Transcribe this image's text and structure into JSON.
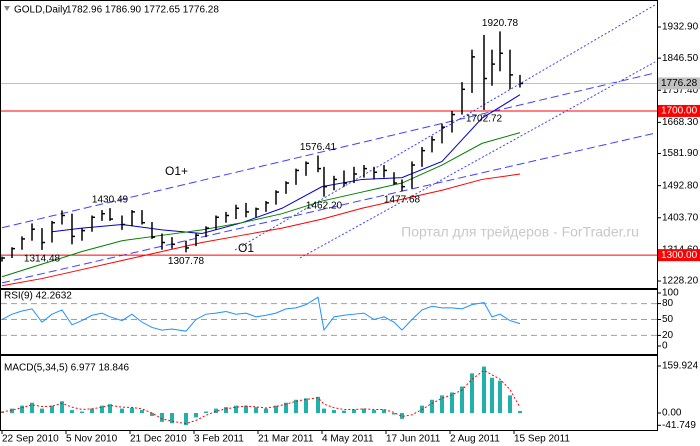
{
  "chart_data": [
    {
      "type": "ohlc",
      "title": "GOLD,Daily",
      "subtitle": "1782.96 1786.90 1772.65 1776.28",
      "x": [
        0,
        5,
        10,
        15,
        20,
        25,
        30,
        35,
        40,
        45,
        50,
        54,
        60,
        65,
        70,
        75,
        80,
        85,
        92,
        97,
        102,
        107,
        112,
        117,
        122,
        127,
        132,
        137,
        142,
        147,
        152,
        158,
        161,
        166,
        171,
        176,
        181,
        186,
        191,
        196,
        200,
        205,
        210,
        215,
        220,
        225,
        230,
        235,
        241,
        245,
        249,
        254,
        259
      ],
      "high": [
        1296,
        1322,
        1352,
        1388,
        1375,
        1395,
        1424,
        1415,
        1375,
        1410,
        1425,
        1430.49,
        1410,
        1425,
        1425,
        1392,
        1360,
        1350,
        1340,
        1360,
        1380,
        1410,
        1420,
        1440,
        1445,
        1432,
        1450,
        1480,
        1505,
        1540,
        1560,
        1576.41,
        1545,
        1520,
        1535,
        1545,
        1550,
        1545,
        1550,
        1530,
        1510,
        1560,
        1600,
        1630,
        1665,
        1700,
        1780,
        1870,
        1911,
        1870,
        1920.78,
        1870,
        1800
      ],
      "low": [
        1282,
        1292,
        1315,
        1340,
        1314.48,
        1335,
        1385,
        1330,
        1340,
        1365,
        1395,
        1395,
        1370,
        1380,
        1385,
        1345,
        1315,
        1318,
        1307.78,
        1325,
        1350,
        1370,
        1390,
        1400,
        1405,
        1405,
        1420,
        1440,
        1470,
        1495,
        1520,
        1530,
        1462.2,
        1480,
        1490,
        1500,
        1515,
        1510,
        1515,
        1495,
        1477.68,
        1485,
        1545,
        1585,
        1610,
        1640,
        1690,
        1750,
        1702.72,
        1770,
        1810,
        1760,
        1765
      ],
      "close": [
        1292,
        1318,
        1345,
        1372,
        1335,
        1390,
        1410,
        1352,
        1368,
        1405,
        1415,
        1400,
        1385,
        1420,
        1390,
        1350,
        1335,
        1330,
        1320,
        1355,
        1375,
        1405,
        1410,
        1430,
        1420,
        1428,
        1445,
        1475,
        1500,
        1535,
        1555,
        1540,
        1490,
        1510,
        1500,
        1525,
        1540,
        1530,
        1535,
        1500,
        1490,
        1550,
        1590,
        1620,
        1655,
        1690,
        1760,
        1850,
        1790,
        1830,
        1860,
        1800,
        1776.28
      ],
      "color": "#000000",
      "xlim": [
        -1,
        327.5
      ],
      "ylim": [
        1211.6,
        1999.5
      ],
      "yticks": [
        {
          "value": 1932.9,
          "label": "1932.90"
        },
        {
          "value": 1846.5,
          "label": "1846.50"
        },
        {
          "value": 1757.4,
          "label": "1757.40"
        },
        {
          "value": 1668.3,
          "label": "1668.30"
        },
        {
          "value": 1581.9,
          "label": "1581.90"
        },
        {
          "value": 1492.8,
          "label": "1492.80"
        },
        {
          "value": 1403.7,
          "label": "1403.70"
        },
        {
          "value": 1314.6,
          "label": "1314.60"
        },
        {
          "value": 1228.2,
          "label": "1228.20"
        }
      ],
      "moving_averages": [
        {
          "x": [
            25,
            40,
            60,
            80,
            100,
            120,
            140,
            160,
            180,
            200,
            220,
            240,
            259
          ],
          "values": [
            1365,
            1375,
            1385,
            1370,
            1360,
            1390,
            1430,
            1490,
            1510,
            1515,
            1560,
            1680,
            1745
          ],
          "color": "#0000cd"
        },
        {
          "x": [
            0,
            20,
            40,
            60,
            80,
            100,
            120,
            140,
            160,
            180,
            200,
            220,
            240,
            259
          ],
          "values": [
            1240,
            1275,
            1310,
            1340,
            1355,
            1370,
            1390,
            1415,
            1450,
            1475,
            1500,
            1550,
            1610,
            1640
          ],
          "color": "#008000"
        },
        {
          "x": [
            0,
            20,
            40,
            60,
            80,
            100,
            120,
            140,
            160,
            180,
            200,
            220,
            240,
            259
          ],
          "values": [
            1215,
            1235,
            1260,
            1285,
            1310,
            1335,
            1355,
            1375,
            1400,
            1430,
            1455,
            1480,
            1510,
            1525
          ],
          "color": "#ff0000"
        }
      ],
      "trendlines": [
        {
          "x": [
            0,
            327
          ],
          "values": [
            1376,
            1806
          ],
          "color": "#4040ff",
          "style": "dashed"
        },
        {
          "x": [
            0,
            327
          ],
          "values": [
            1223,
            1639
          ],
          "color": "#4040ff",
          "style": "dashed"
        },
        {
          "x": [
            116.5,
            326.5
          ],
          "values": [
            1314.3,
            1994.1
          ],
          "color": "#4040ff",
          "style": "dotted"
        },
        {
          "x": [
            149,
            326.5
          ],
          "values": [
            1292.1,
            1835.9
          ],
          "color": "#4040ff",
          "style": "dotted"
        }
      ],
      "price_levels": [
        {
          "value": 1776.28,
          "color": "#c0c0c0"
        },
        {
          "value": 1700,
          "label": "1700.00",
          "color": "#ff0000"
        },
        {
          "value": 1300,
          "label": "1300.00",
          "color": "#ff0000"
        }
      ],
      "high_labels": [
        {
          "x": 249,
          "value": 1920.78
        },
        {
          "x": 158,
          "value": 1576.41
        },
        {
          "x": 54,
          "value": 1430.49
        }
      ],
      "low_labels": [
        {
          "x": 241,
          "value": 1702.72
        },
        {
          "x": 161,
          "value": 1462.2,
          "label": "1462.20"
        },
        {
          "x": 200,
          "value": 1477.68
        },
        {
          "x": 20,
          "value": 1314.48
        },
        {
          "x": 92,
          "value": 1307.78
        }
      ],
      "channel_labels": [
        "O1+",
        "O1"
      ],
      "watermark": "Портал для трейдеров - ForTrader.ru"
    },
    {
      "type": "line",
      "title": "RSI(9) 42.2632",
      "x": [
        0,
        5,
        10,
        15,
        20,
        25,
        30,
        35,
        40,
        45,
        50,
        54,
        60,
        65,
        70,
        75,
        80,
        85,
        92,
        97,
        102,
        107,
        112,
        117,
        122,
        127,
        132,
        137,
        142,
        147,
        152,
        158,
        161,
        166,
        171,
        176,
        181,
        186,
        191,
        196,
        200,
        205,
        210,
        215,
        220,
        225,
        230,
        235,
        241,
        245,
        249,
        254,
        259
      ],
      "values": [
        50,
        60,
        66,
        70,
        45,
        60,
        68,
        40,
        48,
        58,
        62,
        55,
        48,
        60,
        45,
        35,
        30,
        32,
        28,
        50,
        60,
        62,
        65,
        60,
        62,
        55,
        58,
        62,
        70,
        72,
        78,
        92,
        30,
        55,
        58,
        60,
        62,
        50,
        55,
        45,
        30,
        50,
        68,
        75,
        72,
        72,
        70,
        78,
        82,
        55,
        60,
        48,
        42.2632
      ],
      "color": "#1e90ff",
      "xlim": [
        -1,
        327.5
      ],
      "ylim": [
        -13.2,
        107.5
      ],
      "yticks": [
        100,
        80,
        50,
        20,
        0
      ],
      "levels": [
        80,
        50,
        20
      ]
    },
    {
      "type": "bar",
      "title": "MACD(5,34,5) 6.977 18.846",
      "x": [
        0,
        5,
        10,
        15,
        20,
        25,
        30,
        35,
        40,
        45,
        50,
        54,
        60,
        65,
        70,
        75,
        80,
        85,
        92,
        97,
        102,
        107,
        112,
        117,
        122,
        127,
        132,
        137,
        142,
        147,
        152,
        158,
        161,
        166,
        171,
        176,
        181,
        186,
        191,
        196,
        200,
        205,
        210,
        215,
        220,
        225,
        230,
        235,
        241,
        245,
        249,
        254,
        259
      ],
      "values": [
        5,
        15,
        25,
        35,
        15,
        25,
        40,
        10,
        5,
        15,
        25,
        30,
        15,
        18,
        10,
        -10,
        -30,
        -35,
        -41,
        -15,
        5,
        15,
        20,
        25,
        25,
        20,
        15,
        25,
        35,
        45,
        50,
        55,
        15,
        10,
        8,
        12,
        15,
        10,
        12,
        -5,
        -20,
        0,
        25,
        45,
        60,
        70,
        90,
        135,
        158,
        120,
        110,
        60,
        6.977
      ],
      "color": "#20b2aa",
      "signal_values": [
        3,
        10,
        18,
        28,
        22,
        23,
        33,
        20,
        12,
        14,
        20,
        26,
        20,
        19,
        14,
        0,
        -20,
        -28,
        -36,
        -25,
        -8,
        6,
        14,
        20,
        23,
        21,
        17,
        22,
        30,
        40,
        46,
        52,
        30,
        18,
        12,
        12,
        14,
        12,
        12,
        2,
        -12,
        -6,
        12,
        33,
        50,
        62,
        78,
        115,
        145,
        130,
        115,
        80,
        18.846
      ],
      "signal_color": "#ff0000",
      "xlim": [
        -1,
        327.5
      ],
      "ylim": [
        -54.4,
        193.9
      ],
      "yticks": [
        159.924,
        {
          "value": 0,
          "label": "0.00"
        },
        -41.749
      ],
      "xticks": [
        {
          "value": 0,
          "label": "22 Sep 2010"
        },
        {
          "value": 32,
          "label": "5 Nov 2010"
        },
        {
          "value": 64,
          "label": "21 Dec 2010"
        },
        {
          "value": 96,
          "label": "3 Feb 2011"
        },
        {
          "value": 128,
          "label": "21 Mar 2011"
        },
        {
          "value": 160,
          "label": "4 May 2011"
        },
        {
          "value": 192,
          "label": "17 Jun 2011"
        },
        {
          "value": 224,
          "label": "2 Aug 2011"
        },
        {
          "value": 256,
          "label": "15 Sep 2011"
        }
      ]
    }
  ]
}
